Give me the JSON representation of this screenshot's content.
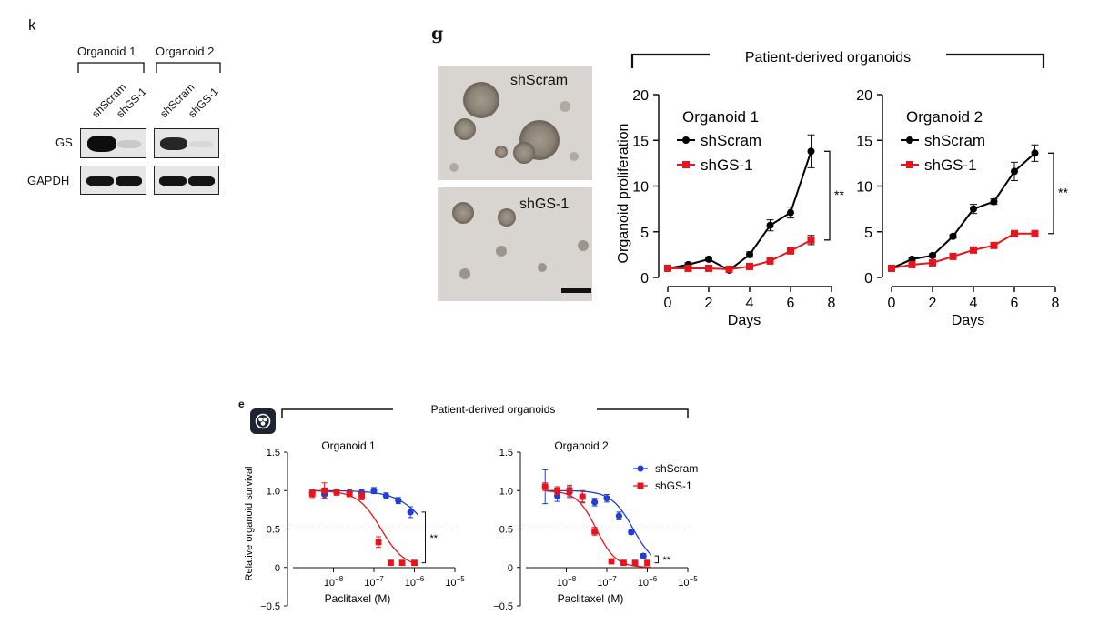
{
  "panel_k": {
    "letter": "k",
    "groups": [
      "Organoid 1",
      "Organoid 2"
    ],
    "lanes": [
      "shScram",
      "shGS-1",
      "shScram",
      "shGS-1"
    ],
    "rows": [
      "GS",
      "GAPDH"
    ]
  },
  "panel_g": {
    "letter": "g",
    "images": [
      {
        "label": "shScram"
      },
      {
        "label": "shGS-1"
      }
    ]
  },
  "panel_e": {
    "letter": "e",
    "icon": "organoid-icon"
  },
  "colors": {
    "shScram_g": "#000000",
    "shGS_g": "#e8141b",
    "shScram_e": "#1f3fd6",
    "shGS_e": "#e8141b"
  },
  "chart_data": [
    {
      "type": "line",
      "title": "Organoid 1",
      "banner": "Patient-derived organoids",
      "xlabel": "Days",
      "ylabel": "Organoid proliferation",
      "xlim": [
        0,
        8
      ],
      "ylim": [
        0,
        20
      ],
      "xticks": [
        0,
        2,
        4,
        6,
        8
      ],
      "yticks": [
        0,
        5,
        10,
        15,
        20
      ],
      "legend_position": "top-left",
      "significance": "**",
      "series": [
        {
          "name": "shScram",
          "x": [
            0,
            1,
            2,
            3,
            4,
            5,
            6,
            7
          ],
          "y": [
            1.0,
            1.4,
            2.0,
            0.8,
            2.5,
            5.7,
            7.1,
            13.8
          ],
          "err": [
            0.2,
            0.2,
            0.2,
            0.2,
            0.3,
            0.6,
            0.6,
            1.8
          ]
        },
        {
          "name": "shGS-1",
          "x": [
            0,
            1,
            2,
            3,
            4,
            5,
            6,
            7
          ],
          "y": [
            1.0,
            1.0,
            1.0,
            0.9,
            1.2,
            1.8,
            2.9,
            4.1
          ],
          "err": [
            0.1,
            0.1,
            0.1,
            0.1,
            0.1,
            0.2,
            0.3,
            0.5
          ]
        }
      ]
    },
    {
      "type": "line",
      "title": "Organoid 2",
      "xlabel": "Days",
      "xlim": [
        0,
        8
      ],
      "ylim": [
        0,
        20
      ],
      "xticks": [
        0,
        2,
        4,
        6,
        8
      ],
      "yticks": [
        0,
        5,
        10,
        15,
        20
      ],
      "legend_position": "top-left",
      "significance": "**",
      "series": [
        {
          "name": "shScram",
          "x": [
            0,
            1,
            2,
            3,
            4,
            5,
            6,
            7
          ],
          "y": [
            1.0,
            2.0,
            2.4,
            4.5,
            7.5,
            8.3,
            11.6,
            13.6
          ],
          "err": [
            0.2,
            0.2,
            0.2,
            0.2,
            0.5,
            0.3,
            1.0,
            0.9
          ]
        },
        {
          "name": "shGS-1",
          "x": [
            0,
            1,
            2,
            3,
            4,
            5,
            6,
            7
          ],
          "y": [
            1.0,
            1.4,
            1.6,
            2.3,
            3.0,
            3.5,
            4.8,
            4.8
          ],
          "err": [
            0.1,
            0.1,
            0.1,
            0.1,
            0.2,
            0.2,
            0.2,
            0.2
          ]
        }
      ]
    },
    {
      "type": "scatter",
      "title": "Organoid 1",
      "banner": "Patient-derived organoids",
      "xlabel": "Paclitaxel (M)",
      "ylabel": "Relative organoid survival",
      "xscale": "log",
      "xlim": [
        1e-09,
        1e-05
      ],
      "ylim": [
        -0.5,
        1.5
      ],
      "xtick_exponents": [
        -8,
        -7,
        -6,
        -5
      ],
      "yticks": [
        "−0.5",
        "0",
        "0.5",
        "1.0",
        "1.5"
      ],
      "reference_line": 0.5,
      "significance": "**",
      "series": [
        {
          "name": "shScram",
          "x": [
            3e-09,
            6e-09,
            1.2e-08,
            2.5e-08,
            5e-08,
            1e-07,
            2e-07,
            4e-07,
            8e-07
          ],
          "y": [
            0.97,
            0.95,
            0.98,
            0.98,
            0.97,
            1.0,
            0.93,
            0.87,
            0.72
          ],
          "err": [
            0.04,
            0.05,
            0.03,
            0.04,
            0.04,
            0.04,
            0.04,
            0.04,
            0.07
          ]
        },
        {
          "name": "shGS-1",
          "x": [
            3e-09,
            6e-09,
            1.2e-08,
            2.5e-08,
            5e-08,
            1.3e-07,
            2.6e-07,
            5e-07,
            1e-06
          ],
          "y": [
            0.96,
            1.0,
            0.98,
            0.96,
            0.93,
            0.33,
            0.06,
            0.06,
            0.06
          ],
          "err": [
            0.05,
            0.1,
            0.04,
            0.04,
            0.05,
            0.07,
            0.02,
            0.02,
            0.02
          ]
        }
      ]
    },
    {
      "type": "scatter",
      "title": "Organoid 2",
      "xlabel": "Paclitaxel (M)",
      "xscale": "log",
      "xlim": [
        1e-09,
        1e-05
      ],
      "ylim": [
        -0.5,
        1.5
      ],
      "xtick_exponents": [
        -8,
        -7,
        -6,
        -5
      ],
      "yticks": [
        "−0.5",
        "0",
        "0.5",
        "1.0",
        "1.5"
      ],
      "reference_line": 0.5,
      "legend_position": "top-right",
      "significance": "**",
      "series": [
        {
          "name": "shScram",
          "x": [
            3e-09,
            6e-09,
            1.2e-08,
            2.5e-08,
            5e-08,
            1e-07,
            2e-07,
            4e-07,
            8e-07
          ],
          "y": [
            1.05,
            0.93,
            0.98,
            0.92,
            0.85,
            0.9,
            0.67,
            0.46,
            0.15
          ],
          "err": [
            0.22,
            0.07,
            0.07,
            0.07,
            0.05,
            0.05,
            0.05,
            0.03,
            0.03
          ]
        },
        {
          "name": "shGS-1",
          "x": [
            3e-09,
            6e-09,
            1.2e-08,
            2.5e-08,
            5e-08,
            1.3e-07,
            2.6e-07,
            5e-07,
            1e-06
          ],
          "y": [
            1.05,
            1.0,
            1.0,
            0.92,
            0.47,
            0.08,
            0.06,
            0.06,
            0.06
          ],
          "err": [
            0.05,
            0.05,
            0.07,
            0.08,
            0.05,
            0.02,
            0.02,
            0.02,
            0.02
          ]
        }
      ]
    }
  ]
}
